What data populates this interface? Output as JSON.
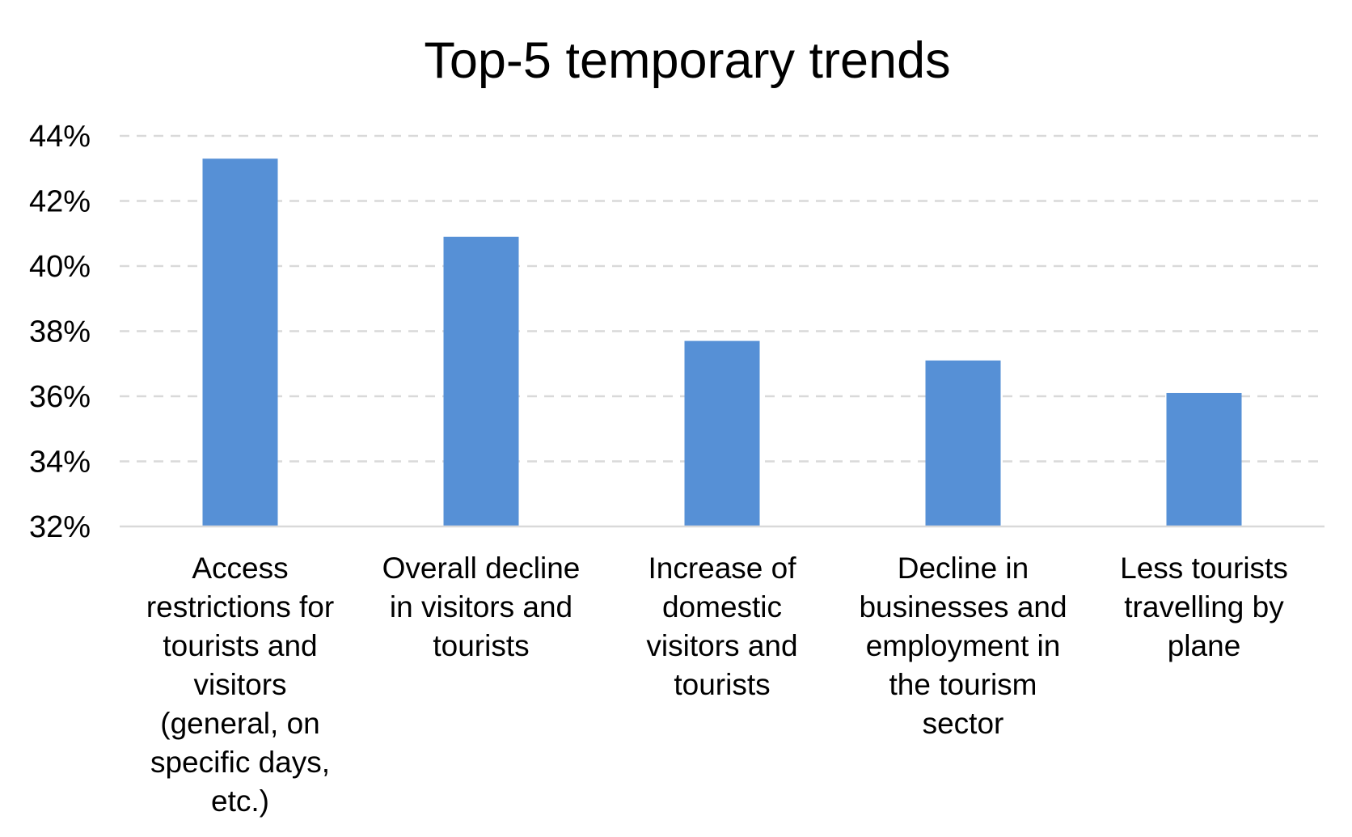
{
  "chart_data": {
    "type": "bar",
    "title": "Top-5 temporary trends",
    "xlabel": "",
    "ylabel": "",
    "categories": [
      "Access restrictions for tourists and visitors (general, on specific days, etc.)",
      "Overall decline in visitors and tourists",
      "Increase of domestic visitors and tourists",
      "Decline in businesses and employment in the tourism sector",
      "Less tourists travelling by plane"
    ],
    "category_lines": [
      [
        "Access",
        "restrictions for",
        "tourists and",
        "visitors",
        "(general, on",
        "specific days,",
        "etc.)"
      ],
      [
        "Overall decline",
        "in visitors and",
        "tourists"
      ],
      [
        "Increase of",
        "domestic",
        "visitors and",
        "tourists"
      ],
      [
        "Decline in",
        "businesses and",
        "employment in",
        "the tourism",
        "sector"
      ],
      [
        "Less tourists",
        "travelling by",
        "plane"
      ]
    ],
    "values": [
      43.3,
      40.9,
      37.7,
      37.1,
      36.1
    ],
    "value_unit": "%",
    "ylim": [
      32,
      44
    ],
    "yticks": [
      32,
      34,
      36,
      38,
      40,
      42,
      44
    ],
    "ytick_labels": [
      "32%",
      "34%",
      "36%",
      "38%",
      "40%",
      "42%",
      "44%"
    ],
    "grid": true,
    "legend": "none",
    "bar_color": "#5690d6"
  }
}
